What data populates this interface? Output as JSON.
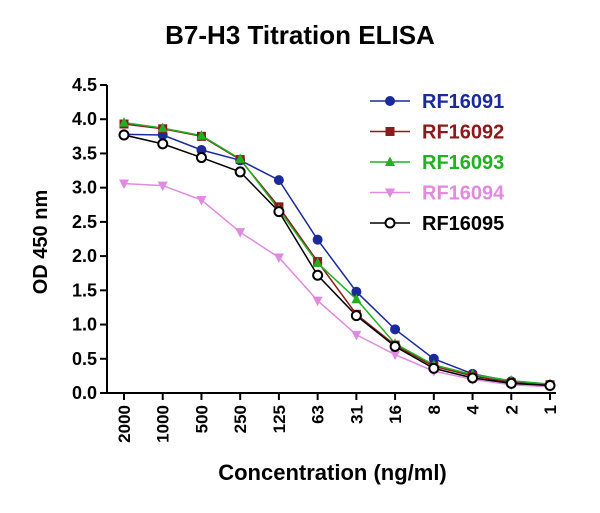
{
  "chart_data": {
    "type": "line",
    "title": "B7-H3 Titration ELISA",
    "xlabel": "Concentration (ng/ml)",
    "ylabel": "OD 450 nm",
    "categories": [
      "2000",
      "1000",
      "500",
      "250",
      "125",
      "63",
      "31",
      "16",
      "8",
      "4",
      "2",
      "1"
    ],
    "ylim": [
      0,
      4.5
    ],
    "yticks": [
      "0.0",
      "0.5",
      "1.0",
      "1.5",
      "2.0",
      "2.5",
      "3.0",
      "3.5",
      "4.0",
      "4.5"
    ],
    "grid": false,
    "legend_position": "top-right",
    "series": [
      {
        "name": "RF16091",
        "color": "#1a2a9c",
        "marker": "circle-filled",
        "values": [
          3.78,
          3.77,
          3.55,
          3.4,
          3.11,
          2.24,
          1.48,
          0.93,
          0.5,
          0.28,
          0.17,
          0.12
        ]
      },
      {
        "name": "RF16092",
        "color": "#8b1a1a",
        "marker": "square",
        "values": [
          3.93,
          3.86,
          3.75,
          3.41,
          2.72,
          1.92,
          1.15,
          0.7,
          0.39,
          0.25,
          0.15,
          0.12
        ]
      },
      {
        "name": "RF16093",
        "color": "#22b022",
        "marker": "triangle-up",
        "values": [
          3.95,
          3.87,
          3.76,
          3.42,
          2.68,
          1.9,
          1.37,
          0.72,
          0.41,
          0.27,
          0.18,
          0.13
        ]
      },
      {
        "name": "RF16094",
        "color": "#e08ae0",
        "marker": "triangle-down",
        "values": [
          3.06,
          3.03,
          2.82,
          2.35,
          1.98,
          1.35,
          0.85,
          0.56,
          0.32,
          0.2,
          0.12,
          0.09
        ]
      },
      {
        "name": "RF16095",
        "color": "#000000",
        "marker": "circle-open",
        "values": [
          3.77,
          3.64,
          3.44,
          3.23,
          2.65,
          1.72,
          1.13,
          0.68,
          0.36,
          0.22,
          0.14,
          0.11
        ]
      }
    ]
  }
}
